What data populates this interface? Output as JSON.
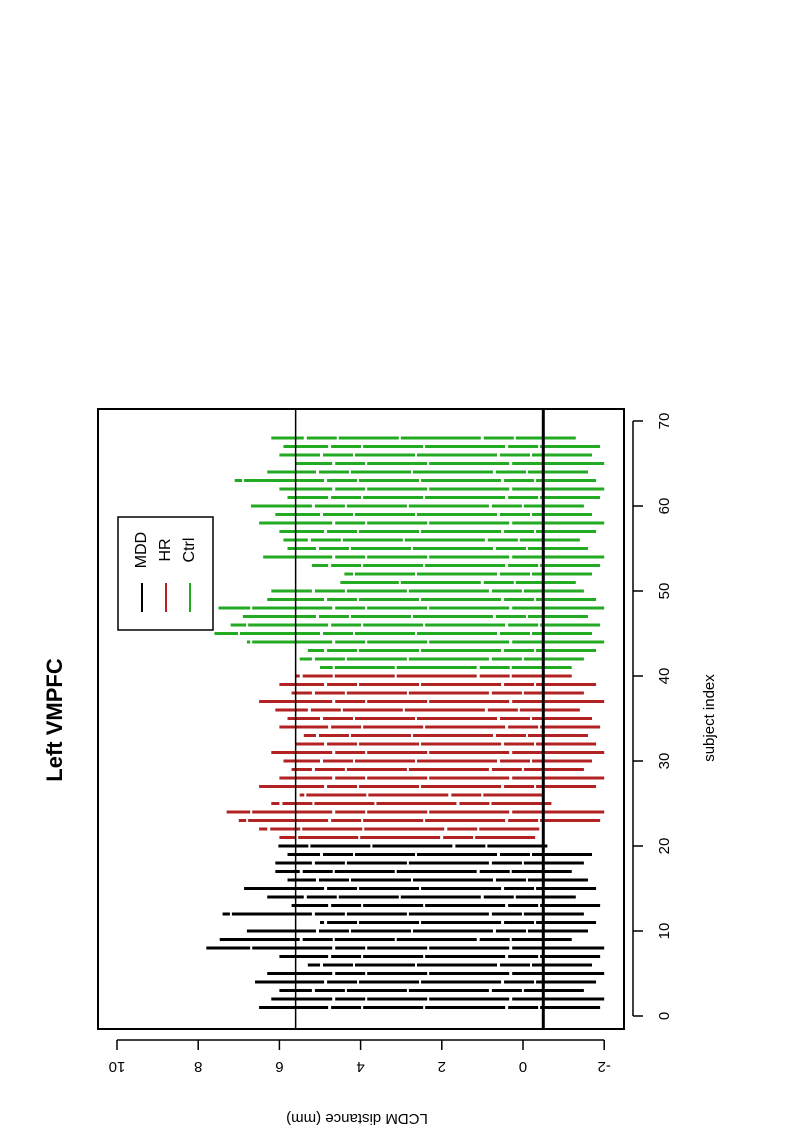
{
  "chart_data": {
    "type": "line",
    "orientation": "rotated-90",
    "title": "Left VMPFC",
    "xlabel": "subject index",
    "ylabel": "LCDM distance (mm)",
    "xlim": [
      0,
      70
    ],
    "ylim": [
      -2,
      10
    ],
    "x_ticks": [
      "0",
      "10",
      "20",
      "30",
      "40",
      "50",
      "60",
      "70"
    ],
    "y_ticks": [
      "-2",
      "0",
      "2",
      "4",
      "6",
      "8",
      "10"
    ],
    "grid": false,
    "legend_position": "top-left",
    "reference_lines": [
      {
        "y": 5.6,
        "width": 1.5
      },
      {
        "y": -0.5,
        "width": 3
      }
    ],
    "series": [
      {
        "name": "MDD",
        "color": "#000000",
        "segments": [
          {
            "x": 1,
            "low": -1.9,
            "high": 6.5
          },
          {
            "x": 2,
            "low": -2.0,
            "high": 6.2
          },
          {
            "x": 3,
            "low": -1.5,
            "high": 6.0
          },
          {
            "x": 4,
            "low": -1.8,
            "high": 6.6
          },
          {
            "x": 5,
            "low": -2.0,
            "high": 6.3
          },
          {
            "x": 6,
            "low": -1.7,
            "high": 5.3
          },
          {
            "x": 7,
            "low": -1.9,
            "high": 6.0
          },
          {
            "x": 8,
            "low": -2.0,
            "high": 7.8
          },
          {
            "x": 9,
            "low": -1.2,
            "high": 7.5
          },
          {
            "x": 10,
            "low": -1.6,
            "high": 6.8
          },
          {
            "x": 11,
            "low": -1.8,
            "high": 5.0
          },
          {
            "x": 12,
            "low": -1.5,
            "high": 7.4
          },
          {
            "x": 13,
            "low": -1.9,
            "high": 5.7
          },
          {
            "x": 14,
            "low": -1.3,
            "high": 6.3
          },
          {
            "x": 15,
            "low": -1.8,
            "high": 6.9
          },
          {
            "x": 16,
            "low": -1.6,
            "high": 5.8
          },
          {
            "x": 17,
            "low": -1.2,
            "high": 6.1
          },
          {
            "x": 18,
            "low": -1.5,
            "high": 6.1
          },
          {
            "x": 19,
            "low": -1.7,
            "high": 5.8
          },
          {
            "x": 20,
            "low": -0.6,
            "high": 6.1
          }
        ]
      },
      {
        "name": "HR",
        "color": "#b22222",
        "segments": [
          {
            "x": 21,
            "low": -0.3,
            "high": 6.0
          },
          {
            "x": 22,
            "low": -0.4,
            "high": 6.5
          },
          {
            "x": 23,
            "low": -1.9,
            "high": 7.0
          },
          {
            "x": 24,
            "low": -2.0,
            "high": 7.3
          },
          {
            "x": 25,
            "low": -0.7,
            "high": 6.2
          },
          {
            "x": 26,
            "low": -0.5,
            "high": 5.5
          },
          {
            "x": 27,
            "low": -1.8,
            "high": 6.5
          },
          {
            "x": 28,
            "low": -2.0,
            "high": 6.0
          },
          {
            "x": 29,
            "low": -1.5,
            "high": 5.7
          },
          {
            "x": 30,
            "low": -1.7,
            "high": 5.9
          },
          {
            "x": 31,
            "low": -2.0,
            "high": 6.2
          },
          {
            "x": 32,
            "low": -1.8,
            "high": 5.6
          },
          {
            "x": 33,
            "low": -1.6,
            "high": 5.4
          },
          {
            "x": 34,
            "low": -1.9,
            "high": 6.0
          },
          {
            "x": 35,
            "low": -1.7,
            "high": 5.8
          },
          {
            "x": 36,
            "low": -1.4,
            "high": 6.1
          },
          {
            "x": 37,
            "low": -2.0,
            "high": 6.5
          },
          {
            "x": 38,
            "low": -1.5,
            "high": 5.7
          },
          {
            "x": 39,
            "low": -1.8,
            "high": 6.0
          },
          {
            "x": 40,
            "low": -1.2,
            "high": 5.6
          }
        ]
      },
      {
        "name": "Ctrl",
        "color": "#22aa22",
        "segments": [
          {
            "x": 41,
            "low": -1.2,
            "high": 5.0
          },
          {
            "x": 42,
            "low": -1.5,
            "high": 5.5
          },
          {
            "x": 43,
            "low": -1.8,
            "high": 5.3
          },
          {
            "x": 44,
            "low": -2.0,
            "high": 6.8
          },
          {
            "x": 45,
            "low": -1.7,
            "high": 7.6
          },
          {
            "x": 46,
            "low": -1.9,
            "high": 7.2
          },
          {
            "x": 47,
            "low": -1.6,
            "high": 6.9
          },
          {
            "x": 48,
            "low": -2.0,
            "high": 7.5
          },
          {
            "x": 49,
            "low": -1.8,
            "high": 6.3
          },
          {
            "x": 50,
            "low": -1.5,
            "high": 6.2
          },
          {
            "x": 51,
            "low": -1.3,
            "high": 4.5
          },
          {
            "x": 52,
            "low": -1.7,
            "high": 4.4
          },
          {
            "x": 53,
            "low": -1.9,
            "high": 5.2
          },
          {
            "x": 54,
            "low": -2.0,
            "high": 6.4
          },
          {
            "x": 55,
            "low": -1.6,
            "high": 5.8
          },
          {
            "x": 56,
            "low": -1.4,
            "high": 5.9
          },
          {
            "x": 57,
            "low": -1.8,
            "high": 6.0
          },
          {
            "x": 58,
            "low": -2.0,
            "high": 6.5
          },
          {
            "x": 59,
            "low": -1.7,
            "high": 6.1
          },
          {
            "x": 60,
            "low": -1.5,
            "high": 6.7
          },
          {
            "x": 61,
            "low": -1.9,
            "high": 5.8
          },
          {
            "x": 62,
            "low": -2.0,
            "high": 6.0
          },
          {
            "x": 63,
            "low": -1.8,
            "high": 7.1
          },
          {
            "x": 64,
            "low": -1.6,
            "high": 6.3
          },
          {
            "x": 65,
            "low": -2.0,
            "high": 5.6
          },
          {
            "x": 66,
            "low": -1.7,
            "high": 6.0
          },
          {
            "x": 67,
            "low": -1.9,
            "high": 5.9
          },
          {
            "x": 68,
            "low": -1.3,
            "high": 6.2
          }
        ]
      }
    ]
  }
}
